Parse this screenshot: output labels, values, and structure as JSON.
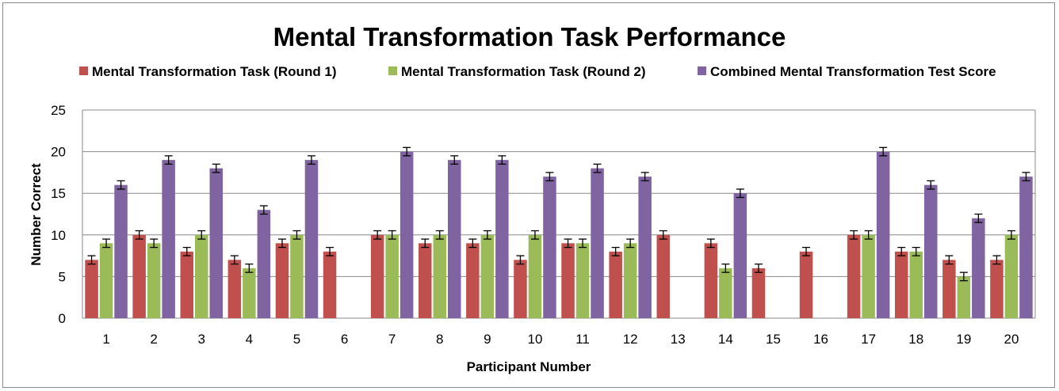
{
  "chart_data": {
    "type": "bar",
    "title": "Mental Transformation Task Performance",
    "xlabel": "Participant Number",
    "ylabel": "Number Correct",
    "ylim": [
      0,
      25
    ],
    "yticks": [
      "0",
      "5",
      "10",
      "15",
      "20",
      "25"
    ],
    "grid": "horizontal",
    "legend_position": "top",
    "error_bars": true,
    "categories": [
      "1",
      "2",
      "3",
      "4",
      "5",
      "6",
      "7",
      "8",
      "9",
      "10",
      "11",
      "12",
      "13",
      "14",
      "15",
      "16",
      "17",
      "18",
      "19",
      "20"
    ],
    "series": [
      {
        "name": "Mental Transformation Task (Round 1)",
        "color": "#c0504d",
        "values": [
          7,
          10,
          8,
          7,
          9,
          8,
          10,
          9,
          9,
          7,
          9,
          8,
          10,
          9,
          6,
          8,
          10,
          8,
          7,
          7
        ]
      },
      {
        "name": "Mental Transformation Task (Round 2)",
        "color": "#9bbb59",
        "values": [
          9,
          9,
          10,
          6,
          10,
          null,
          10,
          10,
          10,
          10,
          9,
          9,
          null,
          6,
          null,
          null,
          10,
          8,
          5,
          10
        ]
      },
      {
        "name": "Combined Mental Transformation Test Score",
        "color": "#8064a2",
        "values": [
          16,
          19,
          18,
          13,
          19,
          null,
          20,
          19,
          19,
          17,
          18,
          17,
          null,
          15,
          null,
          null,
          20,
          16,
          12,
          17
        ]
      }
    ]
  }
}
